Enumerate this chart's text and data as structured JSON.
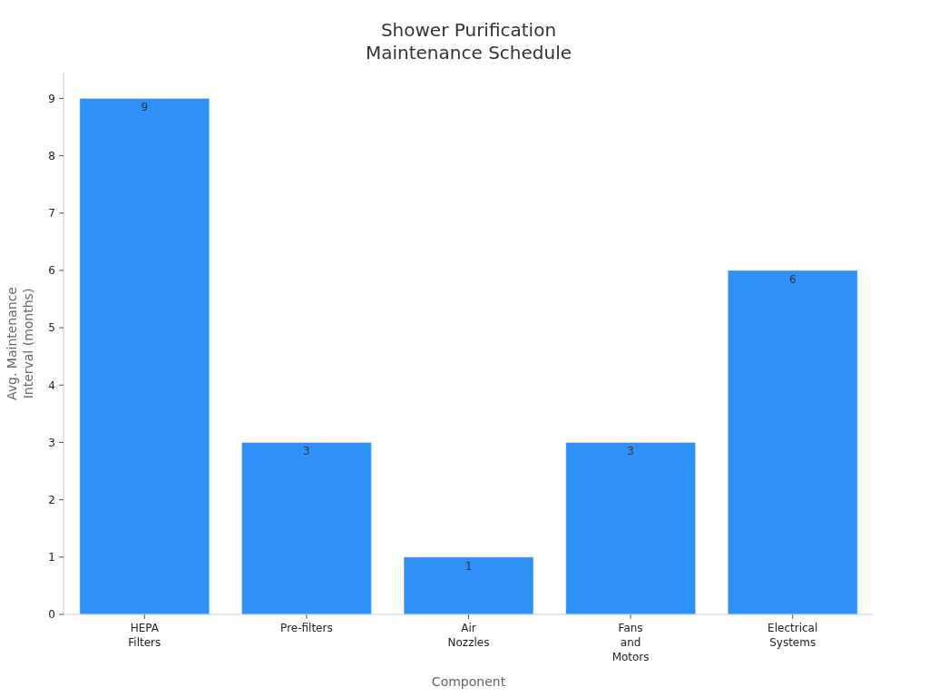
{
  "chart_data": {
    "type": "bar",
    "title": "Shower Purification\nMaintenance Schedule",
    "xlabel": "Component",
    "ylabel": "Avg. Maintenance\nInterval (months)",
    "categories": [
      "HEPA\nFilters",
      "Pre-filters",
      "Air\nNozzles",
      "Fans\nand\nMotors",
      "Electrical\nSystems"
    ],
    "values": [
      9,
      3,
      1,
      3,
      6
    ],
    "color": "#2f91f7",
    "data_labels": true,
    "ylim": [
      0,
      9.45
    ],
    "yticks": [
      0,
      1,
      2,
      3,
      4,
      5,
      6,
      7,
      8,
      9
    ],
    "grid": false
  }
}
